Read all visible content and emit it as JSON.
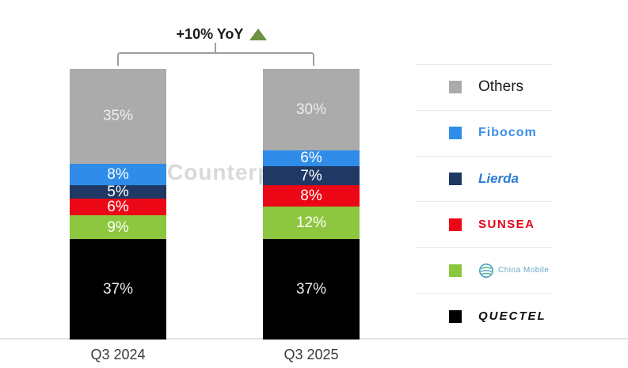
{
  "annotation": {
    "text": "+10% YoY",
    "arrow": "up-triangle",
    "arrow_color": "#6d9142"
  },
  "watermark": {
    "text": "Counterp"
  },
  "chart_data": {
    "type": "bar",
    "stacked": true,
    "orientation": "vertical",
    "categories": [
      "Q3 2024",
      "Q3 2025"
    ],
    "series": [
      {
        "name": "Quectel",
        "color": "#000000",
        "label_color": "#ededed",
        "values": [
          37,
          37
        ]
      },
      {
        "name": "China Mobile",
        "color": "#8dc63f",
        "label_color": "#ffffff",
        "values": [
          9,
          12
        ]
      },
      {
        "name": "Sunsea",
        "color": "#ec0716",
        "label_color": "#ffffff",
        "values": [
          6,
          8
        ]
      },
      {
        "name": "Lierda",
        "color": "#1f3864",
        "label_color": "#ffffff",
        "values": [
          5,
          7
        ]
      },
      {
        "name": "Fibocom",
        "color": "#2f8ce8",
        "label_color": "#ffffff",
        "values": [
          8,
          6
        ]
      },
      {
        "name": "Others",
        "color": "#ababab",
        "label_color": "rgba(255,255,255,0.8)",
        "values": [
          35,
          30
        ]
      }
    ],
    "value_suffix": "%",
    "ylim": [
      0,
      100
    ],
    "grid": false,
    "legend_position": "right",
    "annotation": "+10% YoY"
  },
  "legend": {
    "items": [
      {
        "label": "Others",
        "color": "#ababab",
        "logo_color": "#1a1a1a"
      },
      {
        "label": "Fibocom",
        "color": "#2f8ce8",
        "logo_color": "#3d8fe0"
      },
      {
        "label": "Lierda",
        "color": "#1f3864",
        "logo_color": "#2b7dd1"
      },
      {
        "label": "SUNSEA",
        "color": "#ec0716",
        "logo_color": "#e60117"
      },
      {
        "label": "China Mobile",
        "color": "#8dc63f",
        "logo_color": "#69a7c7"
      },
      {
        "label": "QUECTEL",
        "color": "#000000",
        "logo_color": "#0d0d0d"
      }
    ]
  },
  "x_axis": {
    "labels": [
      "Q3 2024",
      "Q3 2025"
    ]
  }
}
